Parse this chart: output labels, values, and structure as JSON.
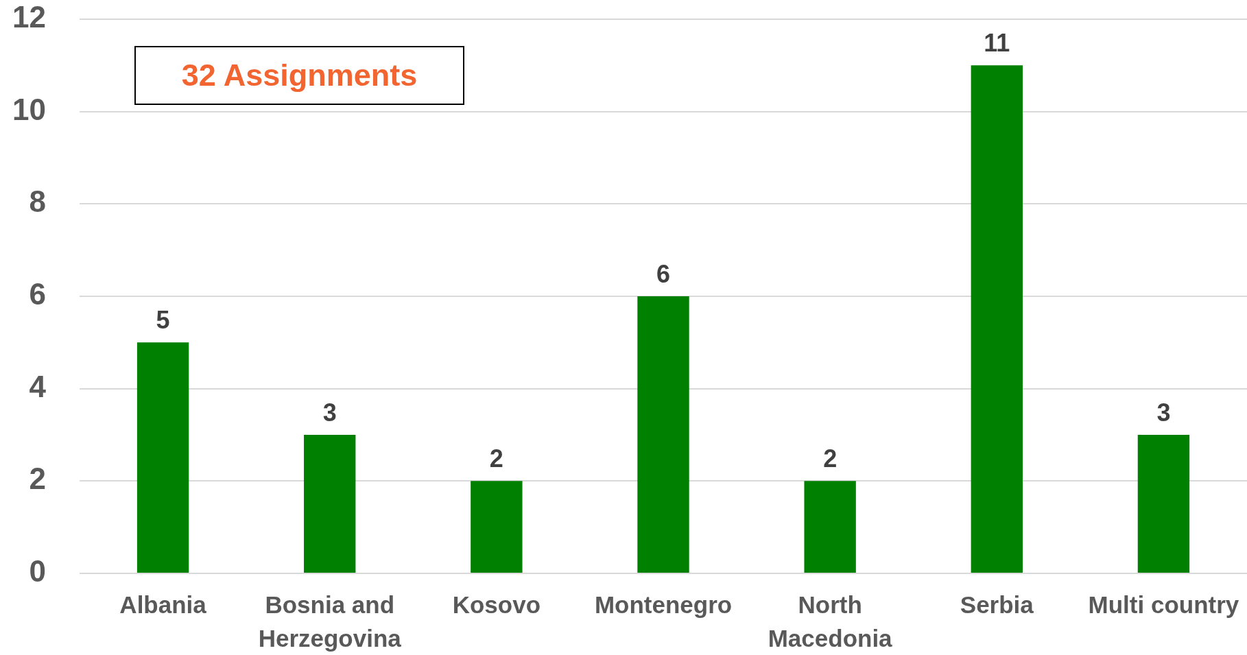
{
  "chart_data": {
    "type": "bar",
    "categories": [
      "Albania",
      "Bosnia and Herzegovina",
      "Kosovo",
      "Montenegro",
      "North Macedonia",
      "Serbia",
      "Multi country"
    ],
    "values": [
      5,
      3,
      2,
      6,
      2,
      11,
      3
    ],
    "color": "#008000",
    "ylim": [
      0,
      12
    ],
    "yticks": [
      0,
      2,
      4,
      6,
      8,
      10,
      12
    ],
    "grid": "y",
    "data_labels": true,
    "annotations": [
      "32 Assignments"
    ]
  }
}
